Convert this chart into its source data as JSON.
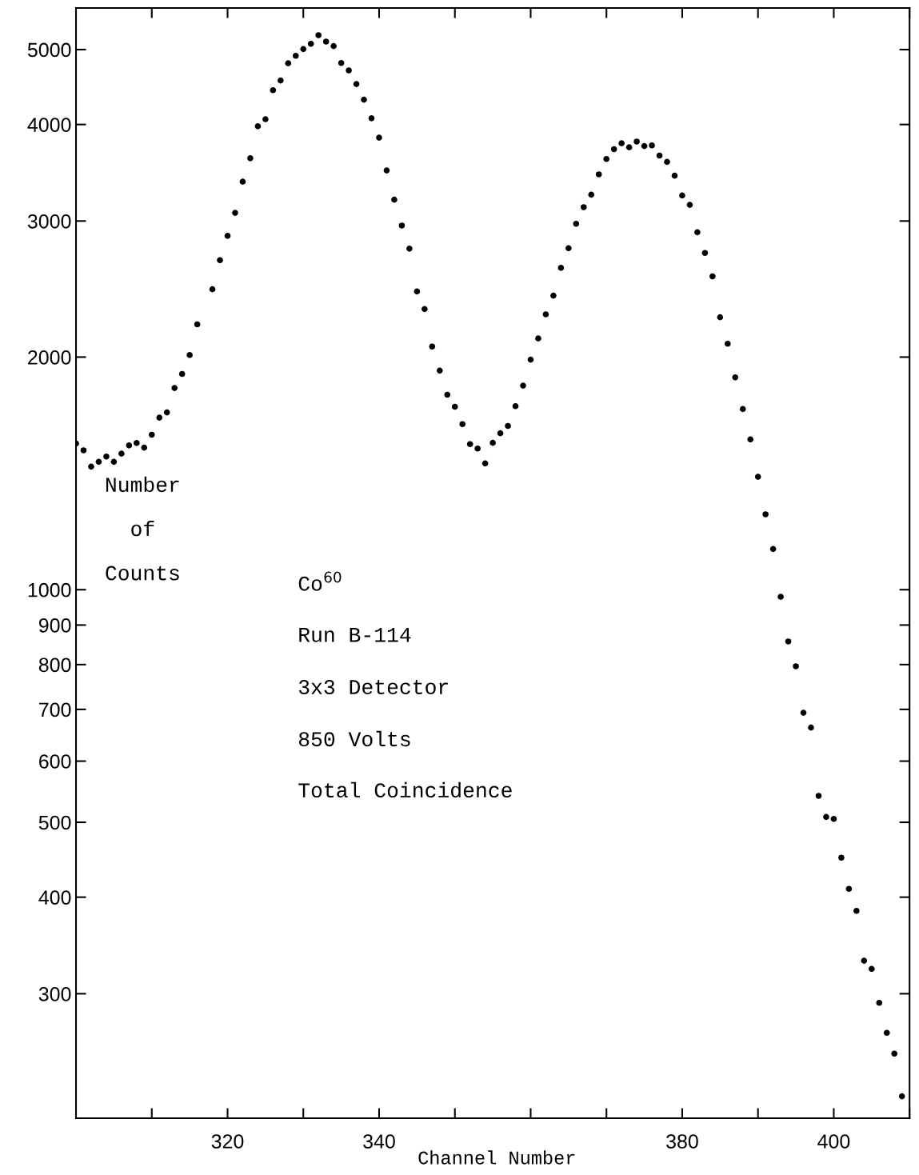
{
  "chart_data": {
    "type": "scatter",
    "xlabel": "Channel Number",
    "ylabel": "Number\nof\nCounts",
    "annotations": [
      "Co$^{60}$",
      "Run B-114",
      "3x3 Detector",
      "850 Volts",
      "Total Coincidence"
    ],
    "x": [
      300,
      301,
      302,
      303,
      304,
      305,
      306,
      307,
      308,
      309,
      310,
      311,
      312,
      313,
      314,
      315,
      316,
      318,
      319,
      320,
      321,
      322,
      323,
      324,
      325,
      326,
      327,
      328,
      329,
      330,
      331,
      332,
      333,
      334,
      335,
      336,
      337,
      338,
      339,
      340,
      341,
      342,
      343,
      344,
      345,
      346,
      347,
      348,
      349,
      350,
      351,
      352,
      353,
      354,
      355,
      356,
      357,
      358,
      359,
      360,
      361,
      362,
      363,
      364,
      365,
      366,
      367,
      368,
      369,
      370,
      371,
      372,
      373,
      374,
      375,
      376,
      377,
      378,
      379,
      380,
      381,
      382,
      383,
      384,
      385,
      386,
      387,
      388,
      389,
      390,
      391,
      392,
      393,
      394,
      395,
      396,
      397,
      398,
      399,
      400,
      401,
      402,
      403,
      404,
      405,
      406,
      407,
      408,
      409
    ],
    "series": [
      {
        "color": "#000000",
        "values": [
          1546,
          1515,
          1443,
          1464,
          1487,
          1464,
          1500,
          1537,
          1548,
          1527,
          1587,
          1670,
          1696,
          1824,
          1902,
          2012,
          2205,
          2448,
          2670,
          2870,
          3074,
          3373,
          3617,
          3979,
          4063,
          4430,
          4560,
          4800,
          4908,
          5008,
          5088,
          5220,
          5120,
          5052,
          4804,
          4700,
          4512,
          4307,
          4075,
          3846,
          3488,
          3197,
          2960,
          2763,
          2432,
          2308,
          2064,
          1921,
          1788,
          1725,
          1638,
          1543,
          1523,
          1457,
          1549,
          1594,
          1629,
          1728,
          1837,
          1985,
          2114,
          2272,
          2402,
          2609,
          2766,
          2976,
          3126,
          3245,
          3447,
          3609,
          3716,
          3782,
          3737,
          3801,
          3751,
          3758,
          3646,
          3578,
          3434,
          3237,
          3148,
          2901,
          2728,
          2544,
          2252,
          2081,
          1883,
          1713,
          1565,
          1400,
          1252,
          1129,
          979,
          857,
          796,
          693,
          663,
          541,
          508,
          505,
          450,
          410,
          384,
          331,
          323,
          292,
          267,
          251,
          221
        ]
      }
    ],
    "log": "y",
    "xlim": [
      300,
      410
    ],
    "ylim": [
      207,
      5660
    ],
    "xticks": [
      {
        "value": 310,
        "label": null
      },
      320,
      {
        "value": 330,
        "label": null
      },
      340,
      {
        "value": 350,
        "label": null
      },
      {
        "value": 360,
        "label": null
      },
      {
        "value": 370,
        "label": null
      },
      380,
      {
        "value": 390,
        "label": null
      },
      400,
      {
        "value": 410,
        "label": null
      }
    ],
    "yticks": [
      300,
      400,
      500,
      600,
      700,
      800,
      900,
      1000,
      2000,
      3000,
      4000,
      5000
    ],
    "marker": "circle",
    "grid": false,
    "legend": false
  }
}
